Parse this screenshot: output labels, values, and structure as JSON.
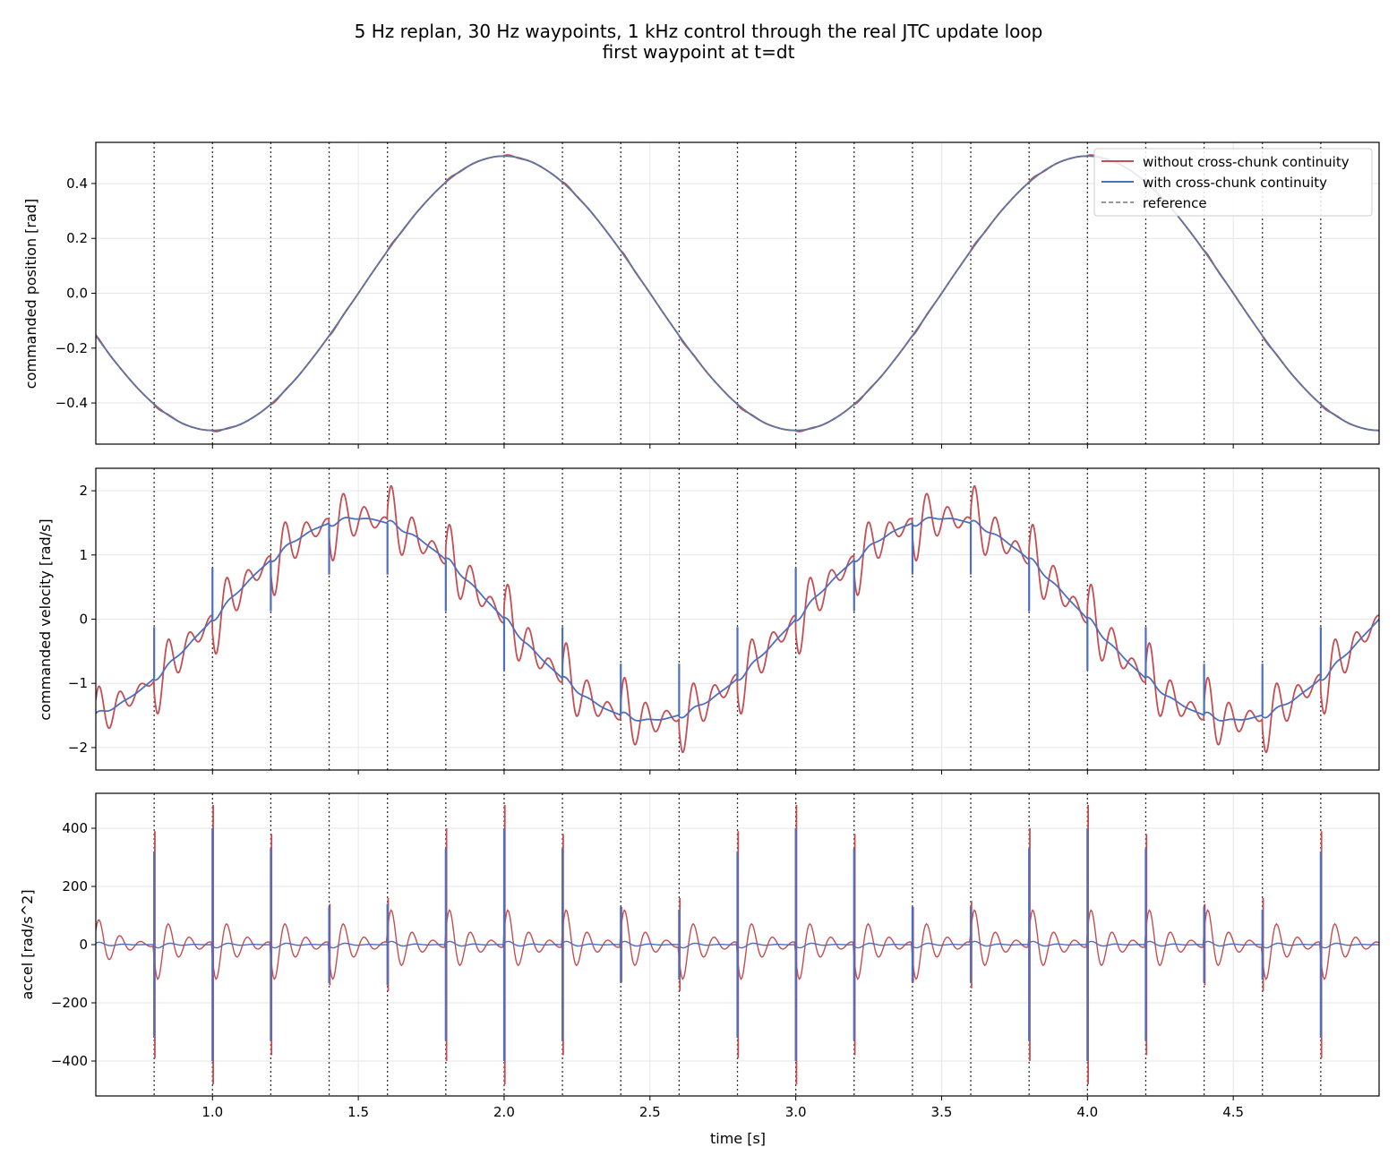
{
  "figure": {
    "title_line1": "5 Hz replan, 30 Hz waypoints, 1 kHz control through the real JTC update loop",
    "title_line2": "first waypoint at t=dt"
  },
  "colors": {
    "without": "#c44e52",
    "with": "#4c6fbf",
    "reference": "#777777",
    "grid": "#e6e6e6",
    "replan_line": "#333333"
  },
  "legend": {
    "placement": "top-right",
    "items": [
      {
        "label": "without cross-chunk continuity",
        "style": "solid",
        "color": "#c44e52"
      },
      {
        "label": "with cross-chunk continuity",
        "style": "solid",
        "color": "#4c6fbf"
      },
      {
        "label": "reference",
        "style": "dashed",
        "color": "#777777"
      }
    ]
  },
  "chart_data": [
    {
      "type": "line",
      "ylabel": "commanded position [rad]",
      "xlim": [
        0.6,
        5.0
      ],
      "ylim": [
        -0.55,
        0.55
      ],
      "yticks": [
        0.4,
        0.2,
        0.0,
        -0.2,
        -0.4
      ],
      "ytick_labels": [
        "0.4",
        "0.2",
        "0.0",
        "−0.2",
        "−0.4"
      ],
      "grid": true,
      "replan_times": [
        0.8,
        1.0,
        1.2,
        1.4,
        1.6,
        1.8,
        2.0,
        2.2,
        2.4,
        2.6,
        2.8,
        3.0,
        3.2,
        3.4,
        3.6,
        3.8,
        4.0,
        4.2,
        4.4,
        4.6,
        4.8
      ],
      "reference": {
        "function": "0.5*cos(pi*t)",
        "period_s": 2.0,
        "amplitude": 0.5
      },
      "series": [
        {
          "name": "without cross-chunk continuity",
          "description": "tracks reference with small kinks after each replan"
        },
        {
          "name": "with cross-chunk continuity",
          "description": "tracks reference smoothly"
        },
        {
          "name": "reference"
        }
      ]
    },
    {
      "type": "line",
      "ylabel": "commanded velocity [rad/s]",
      "xlim": [
        0.6,
        5.0
      ],
      "ylim": [
        -2.35,
        2.35
      ],
      "yticks": [
        2,
        1,
        0,
        -1,
        -2
      ],
      "ytick_labels": [
        "2",
        "1",
        "0",
        "−1",
        "−2"
      ],
      "grid": true,
      "replan_times": [
        0.8,
        1.0,
        1.2,
        1.4,
        1.6,
        1.8,
        2.0,
        2.2,
        2.4,
        2.6,
        2.8,
        3.0,
        3.2,
        3.4,
        3.6,
        3.8,
        4.0,
        4.2,
        4.4,
        4.6,
        4.8
      ],
      "series": [
        {
          "name": "without cross-chunk continuity",
          "base": "-0.5*pi*sin(pi*t)",
          "post_replan_oscillation_amplitude_rad_s": 0.7,
          "peak_values": [
            2.15,
            -2.15
          ]
        },
        {
          "name": "with cross-chunk continuity",
          "base": "-0.5*pi*sin(pi*t)",
          "replan_spike_rad_s": 0.8,
          "peak_values": [
            1.6,
            -1.6
          ]
        }
      ]
    },
    {
      "type": "line",
      "ylabel": "accel [rad/s^2]",
      "xlabel": "time [s]",
      "xlim": [
        0.6,
        5.0
      ],
      "ylim": [
        -520,
        520
      ],
      "yticks": [
        400,
        200,
        0,
        -200,
        -400
      ],
      "ytick_labels": [
        "400",
        "200",
        "0",
        "−200",
        "−400"
      ],
      "xticks": [
        1.0,
        1.5,
        2.0,
        2.5,
        3.0,
        3.5,
        4.0,
        4.5
      ],
      "xtick_labels": [
        "1.0",
        "1.5",
        "2.0",
        "2.5",
        "3.0",
        "3.5",
        "4.0",
        "4.5"
      ],
      "grid": true,
      "replan_times": [
        0.8,
        1.0,
        1.2,
        1.4,
        1.6,
        1.8,
        2.0,
        2.2,
        2.4,
        2.6,
        2.8,
        3.0,
        3.2,
        3.4,
        3.6,
        3.8,
        4.0,
        4.2,
        4.4,
        4.6,
        4.8
      ],
      "series": [
        {
          "name": "without cross-chunk continuity",
          "replan_spike_peaks": [
            390,
            480,
            380,
            140,
            160,
            400,
            480,
            380,
            130,
            160,
            390,
            480,
            380,
            130,
            150,
            400,
            480,
            380,
            140,
            160,
            390
          ],
          "ringing_amplitude": 180
        },
        {
          "name": "with cross-chunk continuity",
          "replan_spike_peaks": [
            320,
            400,
            330,
            130,
            140,
            330,
            400,
            330,
            130,
            120,
            320,
            400,
            330,
            130,
            130,
            330,
            400,
            330,
            130,
            120,
            320
          ],
          "ringing_amplitude": 15
        }
      ]
    }
  ]
}
